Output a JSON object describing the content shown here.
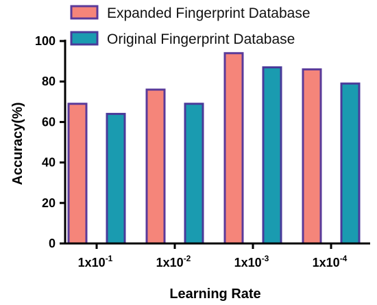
{
  "chart_data": {
    "type": "bar",
    "xlabel": "Learning Rate",
    "ylabel": "Accuracy(%)",
    "ylim": [
      0,
      100
    ],
    "yticks": [
      "0",
      "20",
      "40",
      "60",
      "80",
      "100"
    ],
    "categories": [
      {
        "base": "1x10",
        "exp": "-1"
      },
      {
        "base": "1x10",
        "exp": "-2"
      },
      {
        "base": "1x10",
        "exp": "-3"
      },
      {
        "base": "1x10",
        "exp": "-4"
      }
    ],
    "series": [
      {
        "name": "Expanded Fingerprint Database",
        "values": [
          69,
          76,
          94,
          86
        ],
        "fill": "#f5857a",
        "stroke": "#5a3a9a"
      },
      {
        "name": "Original Fingerprint Database",
        "values": [
          64,
          69,
          87,
          79
        ],
        "fill": "#1a9bb0",
        "stroke": "#4a3a9a"
      }
    ],
    "grid": false,
    "legend_position": "top"
  }
}
